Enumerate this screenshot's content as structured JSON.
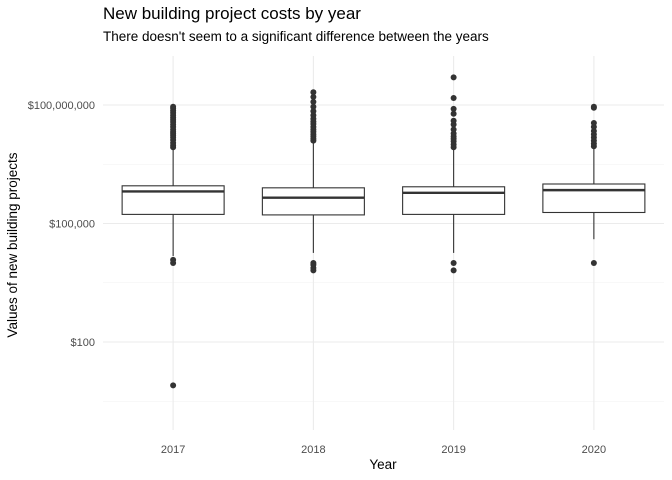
{
  "chart_data": {
    "type": "boxplot",
    "title": "New building project costs by year",
    "subtitle": "There doesn't seem to a significant difference between the years",
    "xlabel": "Year",
    "ylabel": "Values of new building projects",
    "y_scale": "log10",
    "ylim": [
      3,
      600000000
    ],
    "y_ticks": [
      {
        "value": 100,
        "label": "$100"
      },
      {
        "value": 100000,
        "label": "$100,000"
      },
      {
        "value": 100000000,
        "label": "$100,000,000"
      }
    ],
    "grid": true,
    "categories": [
      "2017",
      "2018",
      "2019",
      "2020"
    ],
    "boxes": [
      {
        "category": "2017",
        "whisker_low": 15000,
        "q1": 170000,
        "median": 650000,
        "q3": 900000,
        "whisker_high": 8000000,
        "outliers": [
          8,
          10000,
          12000,
          8500000,
          9500000,
          11000000,
          13000000,
          15000000,
          17000000,
          19000000,
          21000000,
          24000000,
          28000000,
          32000000,
          37000000,
          42000000,
          48000000,
          55000000,
          63000000,
          72000000,
          82000000,
          90000000
        ]
      },
      {
        "category": "2018",
        "whisker_low": 18000,
        "q1": 165000,
        "median": 450000,
        "q3": 800000,
        "whisker_high": 11000000,
        "outliers": [
          6500,
          7500,
          9000,
          10000,
          12500000,
          14000000,
          16000000,
          18000000,
          21000000,
          24000000,
          28000000,
          33000000,
          38000000,
          45000000,
          55000000,
          70000000,
          90000000,
          120000000,
          160000000,
          210000000
        ]
      },
      {
        "category": "2019",
        "whisker_low": 18000,
        "q1": 170000,
        "median": 600000,
        "q3": 850000,
        "whisker_high": 7500000,
        "outliers": [
          6500,
          10000,
          8500000,
          10000000,
          12000000,
          14000000,
          16000000,
          19000000,
          24000000,
          32000000,
          40000000,
          60000000,
          80000000,
          150000000,
          500000000
        ]
      },
      {
        "category": "2020",
        "whisker_low": 40000,
        "q1": 190000,
        "median": 700000,
        "q3": 1000000,
        "whisker_high": 8000000,
        "outliers": [
          10000,
          9000000,
          10500000,
          12500000,
          15000000,
          18000000,
          22000000,
          28000000,
          35000000,
          85000000,
          90000000
        ]
      }
    ]
  }
}
